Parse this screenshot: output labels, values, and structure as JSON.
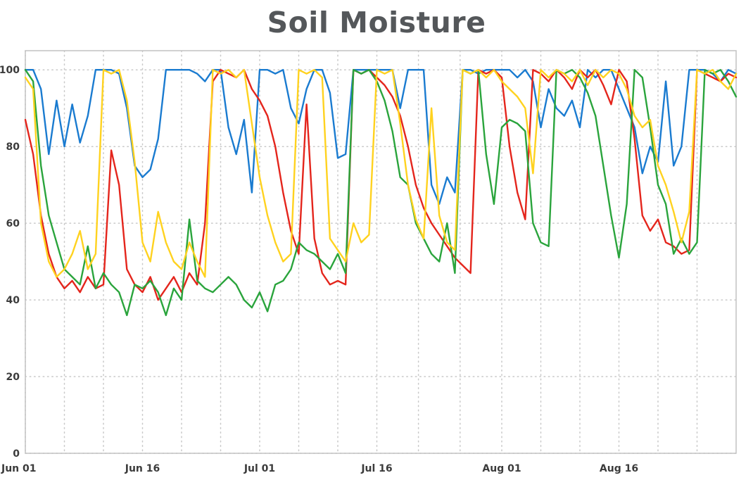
{
  "chart_data": {
    "type": "line",
    "title": "Soil Moisture",
    "xlabel": "",
    "ylabel": "",
    "ylim": [
      0,
      100
    ],
    "y_ticks": [
      0,
      20,
      40,
      60,
      80,
      100
    ],
    "x_tick_labels": [
      "Jun 01",
      "Jun 16",
      "Jul 01",
      "Jul 16",
      "Aug 01",
      "Aug 16"
    ],
    "x_tick_days": [
      0,
      15,
      30,
      45,
      61,
      76
    ],
    "x_range_days": [
      0,
      91
    ],
    "x_unit": "days since Jun 01 (daily samples)",
    "grid": "dotted",
    "legend": "none",
    "series": [
      {
        "name": "blue",
        "color": "#1a7bd0",
        "values": [
          100,
          100,
          95,
          78,
          92,
          80,
          91,
          81,
          88,
          100,
          100,
          100,
          99,
          90,
          75,
          72,
          74,
          82,
          100,
          100,
          100,
          100,
          99,
          97,
          100,
          100,
          85,
          78,
          87,
          68,
          100,
          100,
          99,
          100,
          90,
          86,
          95,
          100,
          100,
          94,
          77,
          78,
          100,
          100,
          100,
          100,
          100,
          100,
          90,
          100,
          100,
          100,
          70,
          65,
          72,
          68,
          100,
          100,
          99,
          100,
          100,
          100,
          100,
          98,
          100,
          97,
          85,
          95,
          90,
          88,
          92,
          85,
          100,
          98,
          100,
          100,
          95,
          90,
          85,
          73,
          80,
          76,
          97,
          75,
          80,
          100,
          100,
          100,
          99,
          97,
          100,
          99
        ]
      },
      {
        "name": "red",
        "color": "#e4251c",
        "values": [
          87,
          78,
          62,
          52,
          46,
          43,
          45,
          42,
          46,
          43,
          44,
          79,
          70,
          48,
          44,
          42,
          46,
          40,
          43,
          46,
          42,
          47,
          44,
          60,
          97,
          100,
          99,
          98,
          100,
          95,
          92,
          88,
          80,
          68,
          58,
          52,
          91,
          56,
          47,
          44,
          45,
          44,
          100,
          99,
          100,
          98,
          96,
          93,
          88,
          80,
          70,
          64,
          60,
          57,
          54,
          51,
          49,
          47,
          100,
          99,
          100,
          98,
          80,
          68,
          61,
          100,
          99,
          97,
          100,
          98,
          95,
          100,
          98,
          100,
          96,
          91,
          100,
          97,
          82,
          62,
          58,
          61,
          55,
          54,
          52,
          53,
          100,
          99,
          98,
          97,
          99,
          98
        ]
      },
      {
        "name": "green",
        "color": "#2aa43c",
        "values": [
          100,
          97,
          75,
          62,
          55,
          48,
          46,
          44,
          54,
          43,
          47,
          44,
          42,
          36,
          44,
          43,
          45,
          42,
          36,
          43,
          40,
          61,
          45,
          43,
          42,
          44,
          46,
          44,
          40,
          38,
          42,
          37,
          44,
          45,
          48,
          55,
          53,
          52,
          50,
          48,
          52,
          47,
          100,
          99,
          100,
          97,
          92,
          84,
          72,
          70,
          60,
          56,
          52,
          50,
          60,
          47,
          100,
          99,
          100,
          78,
          65,
          85,
          87,
          86,
          84,
          60,
          55,
          54,
          100,
          99,
          100,
          98,
          94,
          88,
          75,
          62,
          51,
          65,
          100,
          98,
          85,
          70,
          65,
          52,
          56,
          52,
          55,
          100,
          99,
          100,
          97,
          93
        ]
      },
      {
        "name": "yellow",
        "color": "#ffd21f",
        "values": [
          98,
          95,
          60,
          50,
          46,
          48,
          52,
          58,
          48,
          52,
          100,
          99,
          100,
          92,
          76,
          55,
          50,
          63,
          55,
          50,
          48,
          55,
          50,
          46,
          100,
          99,
          100,
          98,
          100,
          86,
          72,
          62,
          55,
          50,
          52,
          100,
          99,
          100,
          98,
          56,
          53,
          50,
          60,
          55,
          57,
          100,
          99,
          100,
          86,
          70,
          61,
          56,
          90,
          62,
          55,
          53,
          100,
          99,
          100,
          98,
          100,
          97,
          95,
          93,
          90,
          73,
          100,
          98,
          100,
          99,
          97,
          100,
          96,
          100,
          98,
          100,
          99,
          95,
          88,
          85,
          87,
          75,
          70,
          63,
          55,
          63,
          100,
          99,
          100,
          97,
          95,
          99
        ]
      }
    ]
  }
}
